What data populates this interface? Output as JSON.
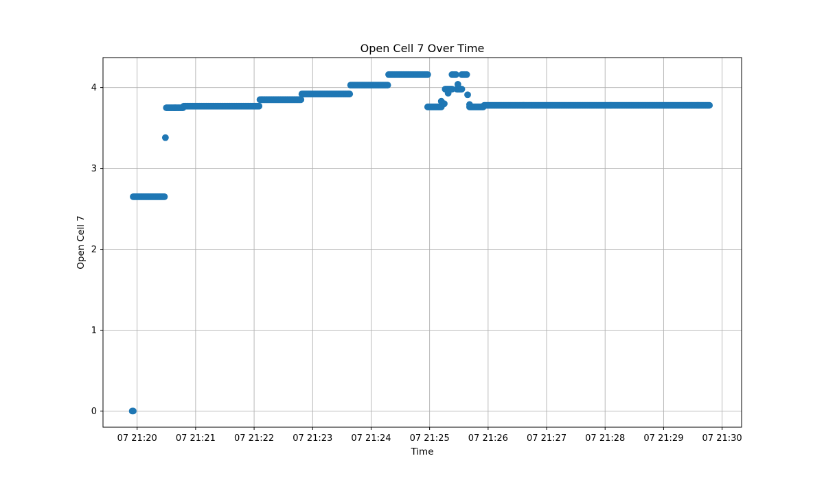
{
  "chart_data": {
    "type": "scatter",
    "title": "Open Cell 7 Over Time",
    "xlabel": "Time",
    "ylabel": "Open Cell 7",
    "x_is_time": true,
    "xlim": [
      "2024-01-07T21:19:25",
      "2024-01-07T21:30:20"
    ],
    "ylim": [
      -0.2,
      4.37
    ],
    "xticks": [
      {
        "t": "2024-01-07T21:20:00",
        "label": "07 21:20"
      },
      {
        "t": "2024-01-07T21:21:00",
        "label": "07 21:21"
      },
      {
        "t": "2024-01-07T21:22:00",
        "label": "07 21:22"
      },
      {
        "t": "2024-01-07T21:23:00",
        "label": "07 21:23"
      },
      {
        "t": "2024-01-07T21:24:00",
        "label": "07 21:24"
      },
      {
        "t": "2024-01-07T21:25:00",
        "label": "07 21:25"
      },
      {
        "t": "2024-01-07T21:26:00",
        "label": "07 21:26"
      },
      {
        "t": "2024-01-07T21:27:00",
        "label": "07 21:27"
      },
      {
        "t": "2024-01-07T21:28:00",
        "label": "07 21:28"
      },
      {
        "t": "2024-01-07T21:29:00",
        "label": "07 21:29"
      },
      {
        "t": "2024-01-07T21:30:00",
        "label": "07 21:30"
      }
    ],
    "yticks": [
      0,
      1,
      2,
      3,
      4
    ],
    "grid": true,
    "marker_color": "#1f77b4",
    "segments": [
      {
        "start": "2024-01-07T21:19:55",
        "end": "2024-01-07T21:19:56",
        "step_s": 1,
        "y": 0.0
      },
      {
        "start": "2024-01-07T21:19:56",
        "end": "2024-01-07T21:20:28",
        "step_s": 1,
        "y": 2.65
      },
      {
        "start": "2024-01-07T21:20:29",
        "end": "2024-01-07T21:20:29",
        "step_s": 1,
        "y": 3.38
      },
      {
        "start": "2024-01-07T21:20:30",
        "end": "2024-01-07T21:20:47",
        "step_s": 1,
        "y": 3.75
      },
      {
        "start": "2024-01-07T21:20:48",
        "end": "2024-01-07T21:22:05",
        "step_s": 1,
        "y": 3.77
      },
      {
        "start": "2024-01-07T21:22:06",
        "end": "2024-01-07T21:22:48",
        "step_s": 1,
        "y": 3.85
      },
      {
        "start": "2024-01-07T21:22:49",
        "end": "2024-01-07T21:23:38",
        "step_s": 1,
        "y": 3.92
      },
      {
        "start": "2024-01-07T21:23:39",
        "end": "2024-01-07T21:24:17",
        "step_s": 1,
        "y": 4.03
      },
      {
        "start": "2024-01-07T21:24:18",
        "end": "2024-01-07T21:24:58",
        "step_s": 1,
        "y": 4.16
      },
      {
        "start": "2024-01-07T21:24:58",
        "end": "2024-01-07T21:25:12",
        "step_s": 1,
        "y": 3.76
      },
      {
        "start": "2024-01-07T21:25:16",
        "end": "2024-01-07T21:25:23",
        "step_s": 1,
        "y": 3.98
      },
      {
        "start": "2024-01-07T21:25:23",
        "end": "2024-01-07T21:25:27",
        "step_s": 1,
        "y": 4.16
      },
      {
        "start": "2024-01-07T21:25:28",
        "end": "2024-01-07T21:25:33",
        "step_s": 1,
        "y": 3.98
      },
      {
        "start": "2024-01-07T21:25:33",
        "end": "2024-01-07T21:25:38",
        "step_s": 1,
        "y": 4.16
      },
      {
        "start": "2024-01-07T21:25:41",
        "end": "2024-01-07T21:25:55",
        "step_s": 1,
        "y": 3.76
      },
      {
        "start": "2024-01-07T21:25:56",
        "end": "2024-01-07T21:29:47",
        "step_s": 1,
        "y": 3.78
      }
    ],
    "points": [
      {
        "t": "2024-01-07T21:25:12",
        "y": 3.83
      },
      {
        "t": "2024-01-07T21:25:15",
        "y": 3.8
      },
      {
        "t": "2024-01-07T21:25:19",
        "y": 3.93
      },
      {
        "t": "2024-01-07T21:25:29",
        "y": 4.04
      },
      {
        "t": "2024-01-07T21:25:39",
        "y": 3.91
      },
      {
        "t": "2024-01-07T21:25:41",
        "y": 3.79
      }
    ]
  }
}
